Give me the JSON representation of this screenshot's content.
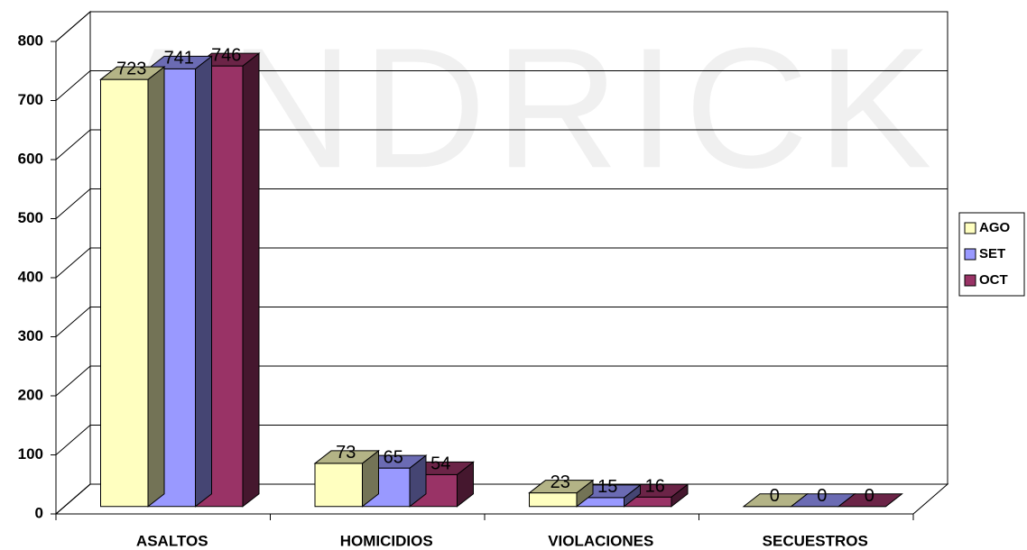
{
  "chart_data": {
    "type": "bar3d",
    "watermark": "ANDRICK",
    "categories": [
      "ASALTOS",
      "HOMICIDIOS",
      "VIOLACIONES",
      "SECUESTROS"
    ],
    "series": [
      {
        "name": "AGO",
        "color": "#ffffc0",
        "values": [
          723,
          73,
          23,
          0
        ]
      },
      {
        "name": "SET",
        "color": "#9999ff",
        "values": [
          741,
          65,
          15,
          0
        ]
      },
      {
        "name": "OCT",
        "color": "#993366",
        "values": [
          746,
          54,
          16,
          0
        ]
      }
    ],
    "ylim": [
      0,
      800
    ],
    "yticks": [
      0,
      100,
      200,
      300,
      400,
      500,
      600,
      700,
      800
    ],
    "grid": true,
    "legend": "right"
  }
}
